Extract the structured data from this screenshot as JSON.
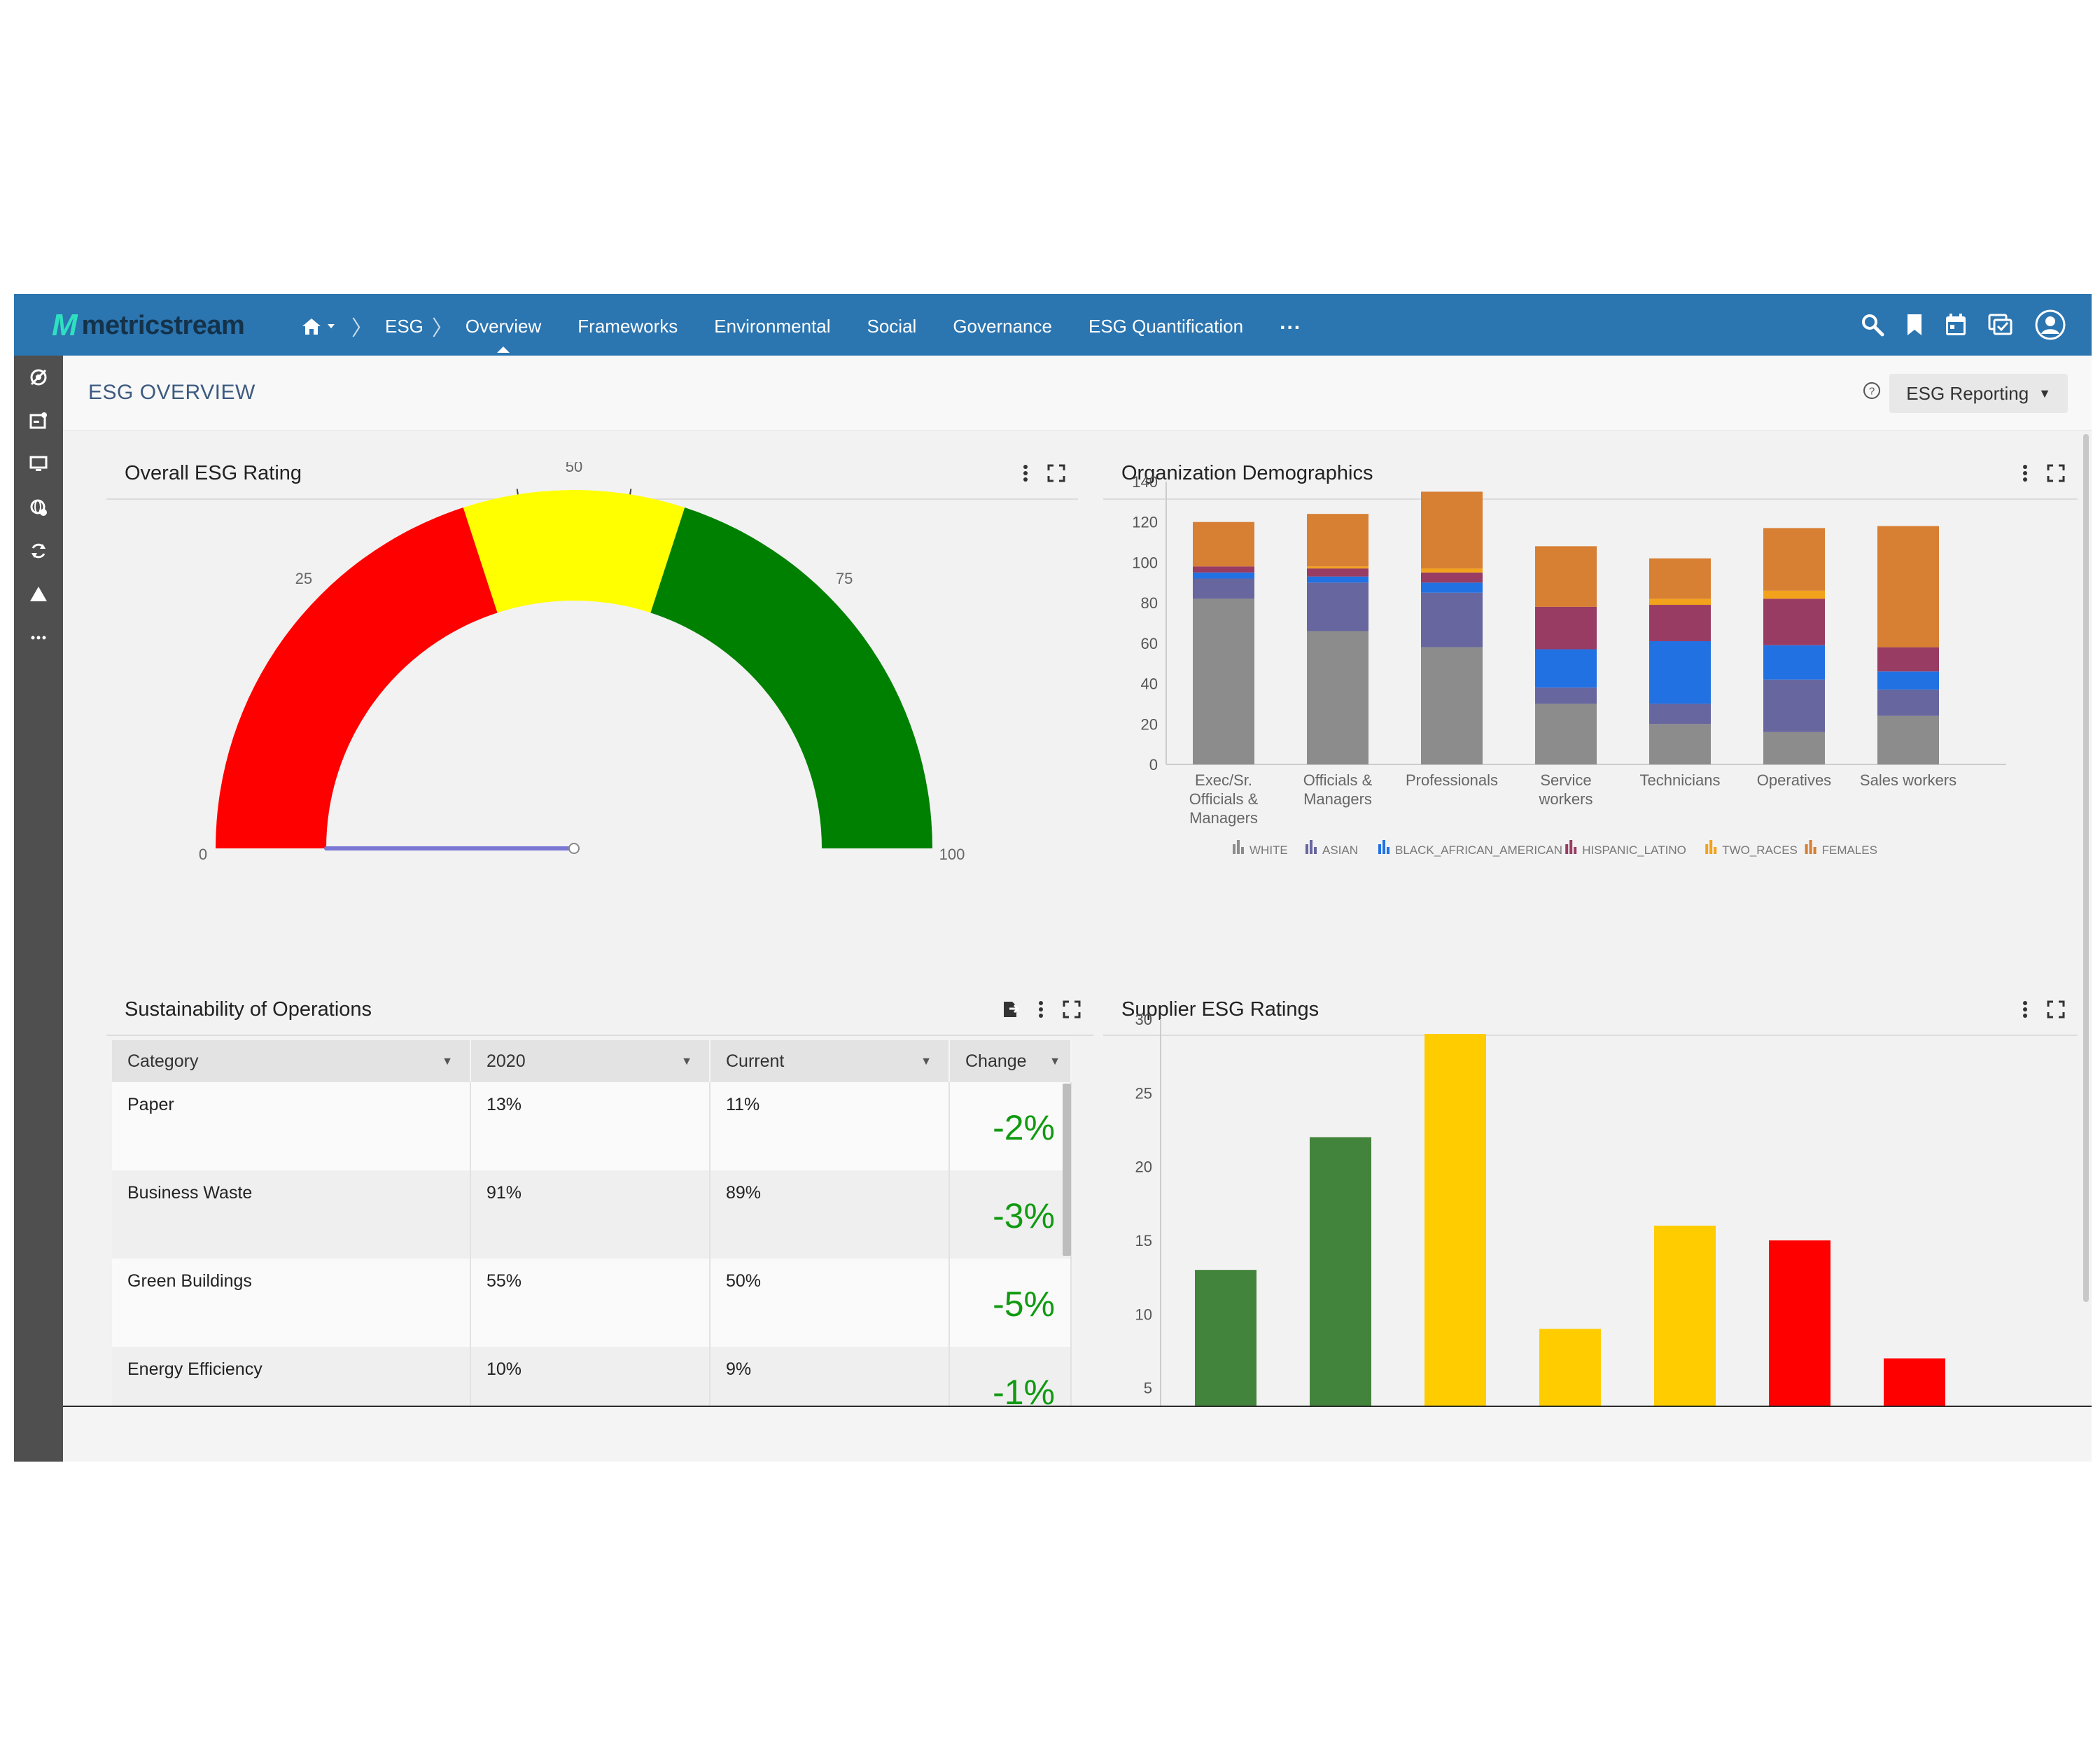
{
  "app": {
    "logo_mark": "M",
    "logo_text": "metricstream"
  },
  "nav": {
    "breadcrumb": "ESG",
    "items": [
      "Overview",
      "Frameworks",
      "Environmental",
      "Social",
      "Governance",
      "ESG Quantification"
    ],
    "more": "..."
  },
  "header": {
    "title": "ESG OVERVIEW",
    "report_button": "ESG Reporting",
    "help_symbol": "?"
  },
  "panels": {
    "rating_title": "Overall ESG Rating",
    "demographics_title": "Organization Demographics",
    "sustainability_title": "Sustainability of Operations",
    "supplier_title": "Supplier ESG Ratings"
  },
  "table": {
    "columns": [
      "Category",
      "2020",
      "Current",
      "Change"
    ],
    "rows": [
      {
        "category": "Paper",
        "y2020": "13%",
        "current": "11%",
        "change": "-2%"
      },
      {
        "category": "Business Waste",
        "y2020": "91%",
        "current": "89%",
        "change": "-3%"
      },
      {
        "category": "Green Buildings",
        "y2020": "55%",
        "current": "50%",
        "change": "-5%"
      },
      {
        "category": "Energy Efficiency",
        "y2020": "10%",
        "current": "9%",
        "change": "-1%"
      }
    ]
  },
  "colors": {
    "nav_bg": "#2b75b0",
    "gauge_red": "#ff0000",
    "gauge_yellow": "#ffff00",
    "gauge_green": "#008000",
    "change_green": "#119a11"
  },
  "chart_data": [
    {
      "type": "gauge",
      "title": "Overall ESG Rating",
      "min": 0,
      "max": 100,
      "value": 0,
      "ticks": [
        0,
        25,
        50,
        75,
        100
      ],
      "bands": [
        {
          "from": 0,
          "to": 40,
          "color": "#ff0000"
        },
        {
          "from": 40,
          "to": 60,
          "color": "#ffff00"
        },
        {
          "from": 60,
          "to": 100,
          "color": "#008000"
        }
      ]
    },
    {
      "type": "bar",
      "stacked": true,
      "title": "Organization Demographics",
      "categories": [
        [
          "Exec/Sr.",
          "Officials &",
          "Managers"
        ],
        [
          "Officials &",
          "Managers"
        ],
        [
          "Professionals"
        ],
        [
          "Service",
          "workers"
        ],
        [
          "Technicians"
        ],
        [
          "Operatives"
        ],
        [
          "Sales workers"
        ]
      ],
      "ylim": [
        0,
        140
      ],
      "yticks": [
        0,
        20,
        40,
        60,
        80,
        100,
        120,
        140
      ],
      "series": [
        {
          "name": "WHITE",
          "color": "#8c8c8c",
          "values": [
            82,
            66,
            58,
            30,
            20,
            16,
            24
          ]
        },
        {
          "name": "ASIAN",
          "color": "#67669e",
          "values": [
            10,
            24,
            27,
            8,
            10,
            26,
            13
          ]
        },
        {
          "name": "BLACK_AFRICAN_AMERICAN",
          "color": "#2271e3",
          "values": [
            3,
            3,
            5,
            19,
            31,
            17,
            9
          ]
        },
        {
          "name": "HISPANIC_LATINO",
          "color": "#983c63",
          "values": [
            3,
            4,
            5,
            21,
            18,
            23,
            12
          ]
        },
        {
          "name": "TWO_RACES",
          "color": "#f2a21b",
          "values": [
            0,
            1,
            2,
            0,
            3,
            4,
            0
          ]
        },
        {
          "name": "FEMALES",
          "color": "#d77f33",
          "values": [
            22,
            26,
            38,
            30,
            20,
            31,
            60
          ]
        }
      ]
    },
    {
      "type": "bar",
      "title": "Supplier ESG Ratings",
      "values": [
        13,
        22,
        29,
        9,
        16,
        15,
        7
      ],
      "colors": [
        "#43843c",
        "#43843c",
        "#ffcc00",
        "#ffcc00",
        "#ffcc00",
        "#ff0000",
        "#ff0000"
      ],
      "ylim": [
        0,
        30
      ],
      "yticks": [
        5,
        10,
        15,
        20,
        25,
        30
      ]
    }
  ]
}
